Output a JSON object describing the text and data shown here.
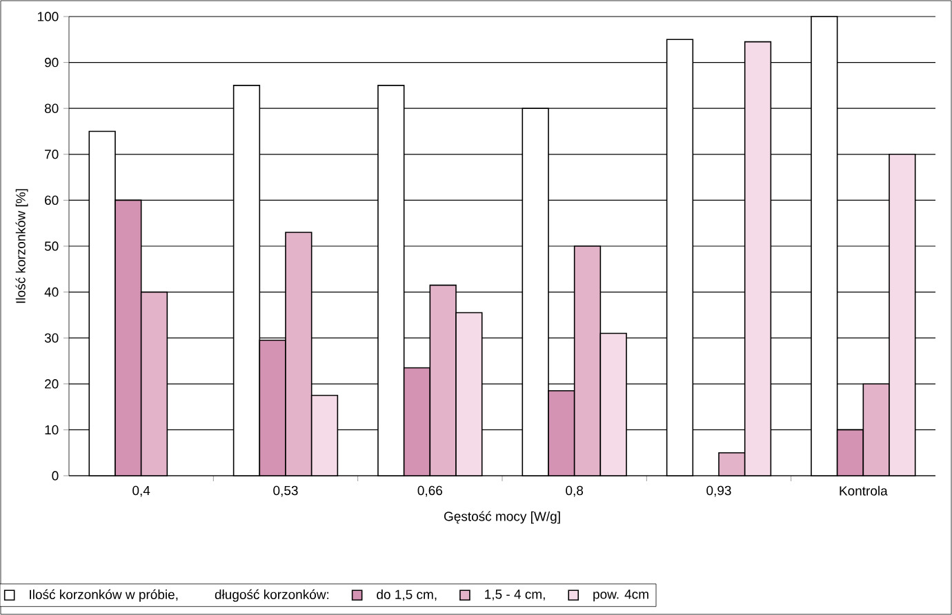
{
  "chart_data": {
    "type": "bar",
    "xlabel": "Gęstość mocy [W/g]",
    "ylabel": "Ilość korzonków [%]",
    "legend_title": "długość korzonków:",
    "categories": [
      "0,4",
      "0,53",
      "0,66",
      "0,8",
      "0,93",
      "Kontrola"
    ],
    "series": [
      {
        "name": "Ilość korzonków w próbie,",
        "color": "#ffffff",
        "values": [
          75,
          85,
          85,
          80,
          95,
          100
        ]
      },
      {
        "name": "do 1,5 cm,",
        "color": "#d493b2",
        "values": [
          60,
          29.5,
          23.5,
          18.5,
          null,
          10
        ]
      },
      {
        "name": "1,5 - 4 cm,",
        "color": "#e3b3c9",
        "values": [
          40,
          53,
          41.5,
          50,
          5,
          20
        ]
      },
      {
        "name": "pow. 4cm",
        "color": "#f5dbe7",
        "values": [
          null,
          17.5,
          35.5,
          31,
          94.5,
          70
        ]
      }
    ],
    "ylim": [
      0,
      100
    ],
    "yticks": [
      0,
      10,
      20,
      30,
      40,
      50,
      60,
      70,
      80,
      90,
      100
    ],
    "grid": "y",
    "legend": "bottom"
  }
}
